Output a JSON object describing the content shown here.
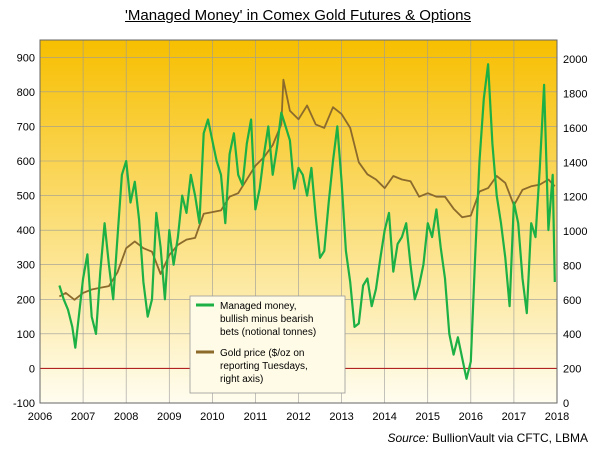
{
  "chart_data": {
    "type": "line",
    "title": "'Managed Money' in Comex Gold Futures & Options",
    "source_prefix": "Source:",
    "source_text": "BullionVault via CFTC, LBMA",
    "x_range": [
      2006,
      2018
    ],
    "x_ticks": [
      "2006",
      "2007",
      "2008",
      "2009",
      "2010",
      "2011",
      "2012",
      "2013",
      "2014",
      "2015",
      "2016",
      "2017",
      "2018"
    ],
    "y_left": {
      "range": [
        -100,
        950
      ],
      "ticks": [
        "900",
        "800",
        "700",
        "600",
        "500",
        "400",
        "300",
        "200",
        "100",
        "0",
        "-100"
      ]
    },
    "y_right": {
      "range": [
        0,
        2111
      ],
      "ticks": [
        "2000",
        "1800",
        "1600",
        "1400",
        "1200",
        "1000",
        "800",
        "600",
        "400",
        "200",
        "0"
      ]
    },
    "grid": true,
    "background": {
      "top": "#f7bf00",
      "bottom": "#fffdf0"
    },
    "zero_line_color": "#b22222",
    "legend_position": "lower-middle",
    "series": [
      {
        "name_lines": [
          "Managed money,",
          "bullish minus bearish",
          "bets (notional tonnes)"
        ],
        "axis": "left",
        "color": "#1db045",
        "x": [
          2006.45,
          2006.55,
          2006.65,
          2006.75,
          2006.82,
          2006.9,
          2007.0,
          2007.1,
          2007.2,
          2007.3,
          2007.4,
          2007.5,
          2007.6,
          2007.7,
          2007.8,
          2007.9,
          2008.0,
          2008.1,
          2008.2,
          2008.3,
          2008.4,
          2008.5,
          2008.6,
          2008.7,
          2008.8,
          2008.9,
          2009.0,
          2009.1,
          2009.2,
          2009.3,
          2009.4,
          2009.5,
          2009.6,
          2009.7,
          2009.8,
          2009.9,
          2010.0,
          2010.1,
          2010.2,
          2010.3,
          2010.4,
          2010.5,
          2010.6,
          2010.7,
          2010.8,
          2010.9,
          2011.0,
          2011.1,
          2011.2,
          2011.3,
          2011.4,
          2011.5,
          2011.6,
          2011.7,
          2011.8,
          2011.9,
          2012.0,
          2012.1,
          2012.2,
          2012.3,
          2012.4,
          2012.5,
          2012.6,
          2012.7,
          2012.8,
          2012.9,
          2013.0,
          2013.1,
          2013.2,
          2013.3,
          2013.4,
          2013.5,
          2013.6,
          2013.7,
          2013.8,
          2013.9,
          2014.0,
          2014.1,
          2014.2,
          2014.3,
          2014.4,
          2014.5,
          2014.6,
          2014.7,
          2014.8,
          2014.9,
          2015.0,
          2015.1,
          2015.2,
          2015.3,
          2015.4,
          2015.5,
          2015.6,
          2015.7,
          2015.8,
          2015.9,
          2016.0,
          2016.1,
          2016.2,
          2016.3,
          2016.4,
          2016.5,
          2016.6,
          2016.7,
          2016.8,
          2016.9,
          2017.0,
          2017.1,
          2017.2,
          2017.3,
          2017.4,
          2017.5,
          2017.6,
          2017.7,
          2017.8,
          2017.9,
          2017.95
        ],
        "y": [
          240,
          200,
          170,
          120,
          60,
          150,
          260,
          330,
          150,
          100,
          280,
          420,
          300,
          200,
          380,
          560,
          600,
          480,
          540,
          430,
          250,
          150,
          200,
          450,
          350,
          200,
          400,
          300,
          380,
          500,
          450,
          560,
          500,
          420,
          680,
          720,
          660,
          600,
          560,
          420,
          620,
          680,
          560,
          530,
          650,
          720,
          460,
          520,
          620,
          700,
          560,
          640,
          740,
          700,
          660,
          520,
          580,
          560,
          500,
          580,
          440,
          320,
          340,
          480,
          600,
          700,
          540,
          340,
          250,
          120,
          130,
          240,
          260,
          180,
          230,
          320,
          400,
          450,
          280,
          360,
          380,
          420,
          300,
          200,
          240,
          300,
          420,
          380,
          460,
          350,
          260,
          100,
          40,
          90,
          30,
          -30,
          20,
          320,
          600,
          780,
          880,
          650,
          500,
          420,
          320,
          180,
          480,
          420,
          260,
          160,
          420,
          380,
          580,
          820,
          400,
          560,
          250
        ]
      },
      {
        "name_lines": [
          "Gold price ($/oz on",
          "reporting Tuesdays,",
          "right axis)"
        ],
        "axis": "right",
        "color": "#8b6a2c",
        "x": [
          2006.45,
          2006.6,
          2006.8,
          2007.0,
          2007.2,
          2007.4,
          2007.6,
          2007.8,
          2008.0,
          2008.2,
          2008.4,
          2008.6,
          2008.8,
          2009.0,
          2009.2,
          2009.4,
          2009.6,
          2009.8,
          2010.0,
          2010.2,
          2010.4,
          2010.6,
          2010.8,
          2011.0,
          2011.2,
          2011.4,
          2011.6,
          2011.65,
          2011.8,
          2012.0,
          2012.2,
          2012.4,
          2012.6,
          2012.8,
          2013.0,
          2013.2,
          2013.4,
          2013.6,
          2013.8,
          2014.0,
          2014.2,
          2014.4,
          2014.6,
          2014.8,
          2015.0,
          2015.2,
          2015.4,
          2015.6,
          2015.8,
          2016.0,
          2016.2,
          2016.4,
          2016.6,
          2016.8,
          2017.0,
          2017.2,
          2017.4,
          2017.6,
          2017.8,
          2017.95
        ],
        "y": [
          620,
          640,
          600,
          640,
          660,
          670,
          680,
          760,
          900,
          940,
          900,
          880,
          750,
          860,
          920,
          950,
          960,
          1100,
          1110,
          1120,
          1200,
          1220,
          1300,
          1380,
          1430,
          1500,
          1620,
          1880,
          1700,
          1650,
          1730,
          1620,
          1600,
          1720,
          1680,
          1600,
          1400,
          1330,
          1300,
          1250,
          1320,
          1300,
          1290,
          1200,
          1220,
          1200,
          1200,
          1130,
          1080,
          1090,
          1230,
          1250,
          1320,
          1280,
          1150,
          1240,
          1260,
          1270,
          1300,
          1260
        ]
      }
    ]
  }
}
